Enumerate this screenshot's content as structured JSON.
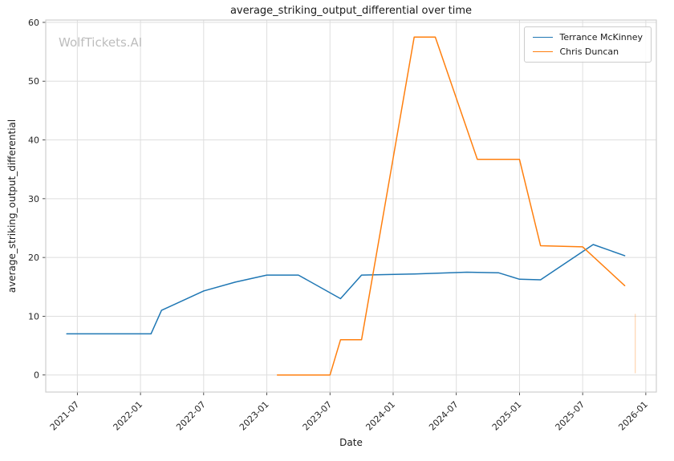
{
  "watermark": "WolfTickets.AI",
  "chart_data": {
    "type": "line",
    "title": "average_striking_output_differential over time",
    "xlabel": "Date",
    "ylabel": "average_striking_output_differential",
    "grid": true,
    "legend_position": "upper right",
    "xlim": [
      "2021-04",
      "2026-02"
    ],
    "ylim": [
      -2.9,
      60.4
    ],
    "x_ticks": [
      "2021-07",
      "2022-01",
      "2022-07",
      "2023-01",
      "2023-07",
      "2024-01",
      "2024-07",
      "2025-01",
      "2025-07",
      "2026-01"
    ],
    "y_ticks": [
      0,
      10,
      20,
      30,
      40,
      50,
      60
    ],
    "series": [
      {
        "name": "Terrance McKinney",
        "color": "#1f77b4",
        "points": [
          [
            "2021-06",
            7
          ],
          [
            "2022-02",
            7
          ],
          [
            "2022-03",
            11
          ],
          [
            "2022-07",
            14.3
          ],
          [
            "2022-10",
            15.8
          ],
          [
            "2023-01",
            17
          ],
          [
            "2023-04",
            17
          ],
          [
            "2023-08",
            13
          ],
          [
            "2023-10",
            17
          ],
          [
            "2024-03",
            17.2
          ],
          [
            "2024-08",
            17.5
          ],
          [
            "2024-11",
            17.4
          ],
          [
            "2025-01",
            16.3
          ],
          [
            "2025-03",
            16.2
          ],
          [
            "2025-08",
            22.2
          ],
          [
            "2025-11",
            20.3
          ]
        ]
      },
      {
        "name": "Chris Duncan",
        "color": "#ff7f0e",
        "points": [
          [
            "2023-02",
            0
          ],
          [
            "2023-07",
            0
          ],
          [
            "2023-08",
            6
          ],
          [
            "2023-10",
            6
          ],
          [
            "2024-03",
            57.5
          ],
          [
            "2024-05",
            57.5
          ],
          [
            "2024-09",
            36.7
          ],
          [
            "2025-01",
            36.7
          ],
          [
            "2025-03",
            22
          ],
          [
            "2025-07",
            21.8
          ],
          [
            "2025-11",
            15.2
          ]
        ]
      }
    ],
    "artifact": {
      "date": "2025-12",
      "y_from": 10.4,
      "y_to": 0.3,
      "color": "#ff7f0e"
    }
  }
}
